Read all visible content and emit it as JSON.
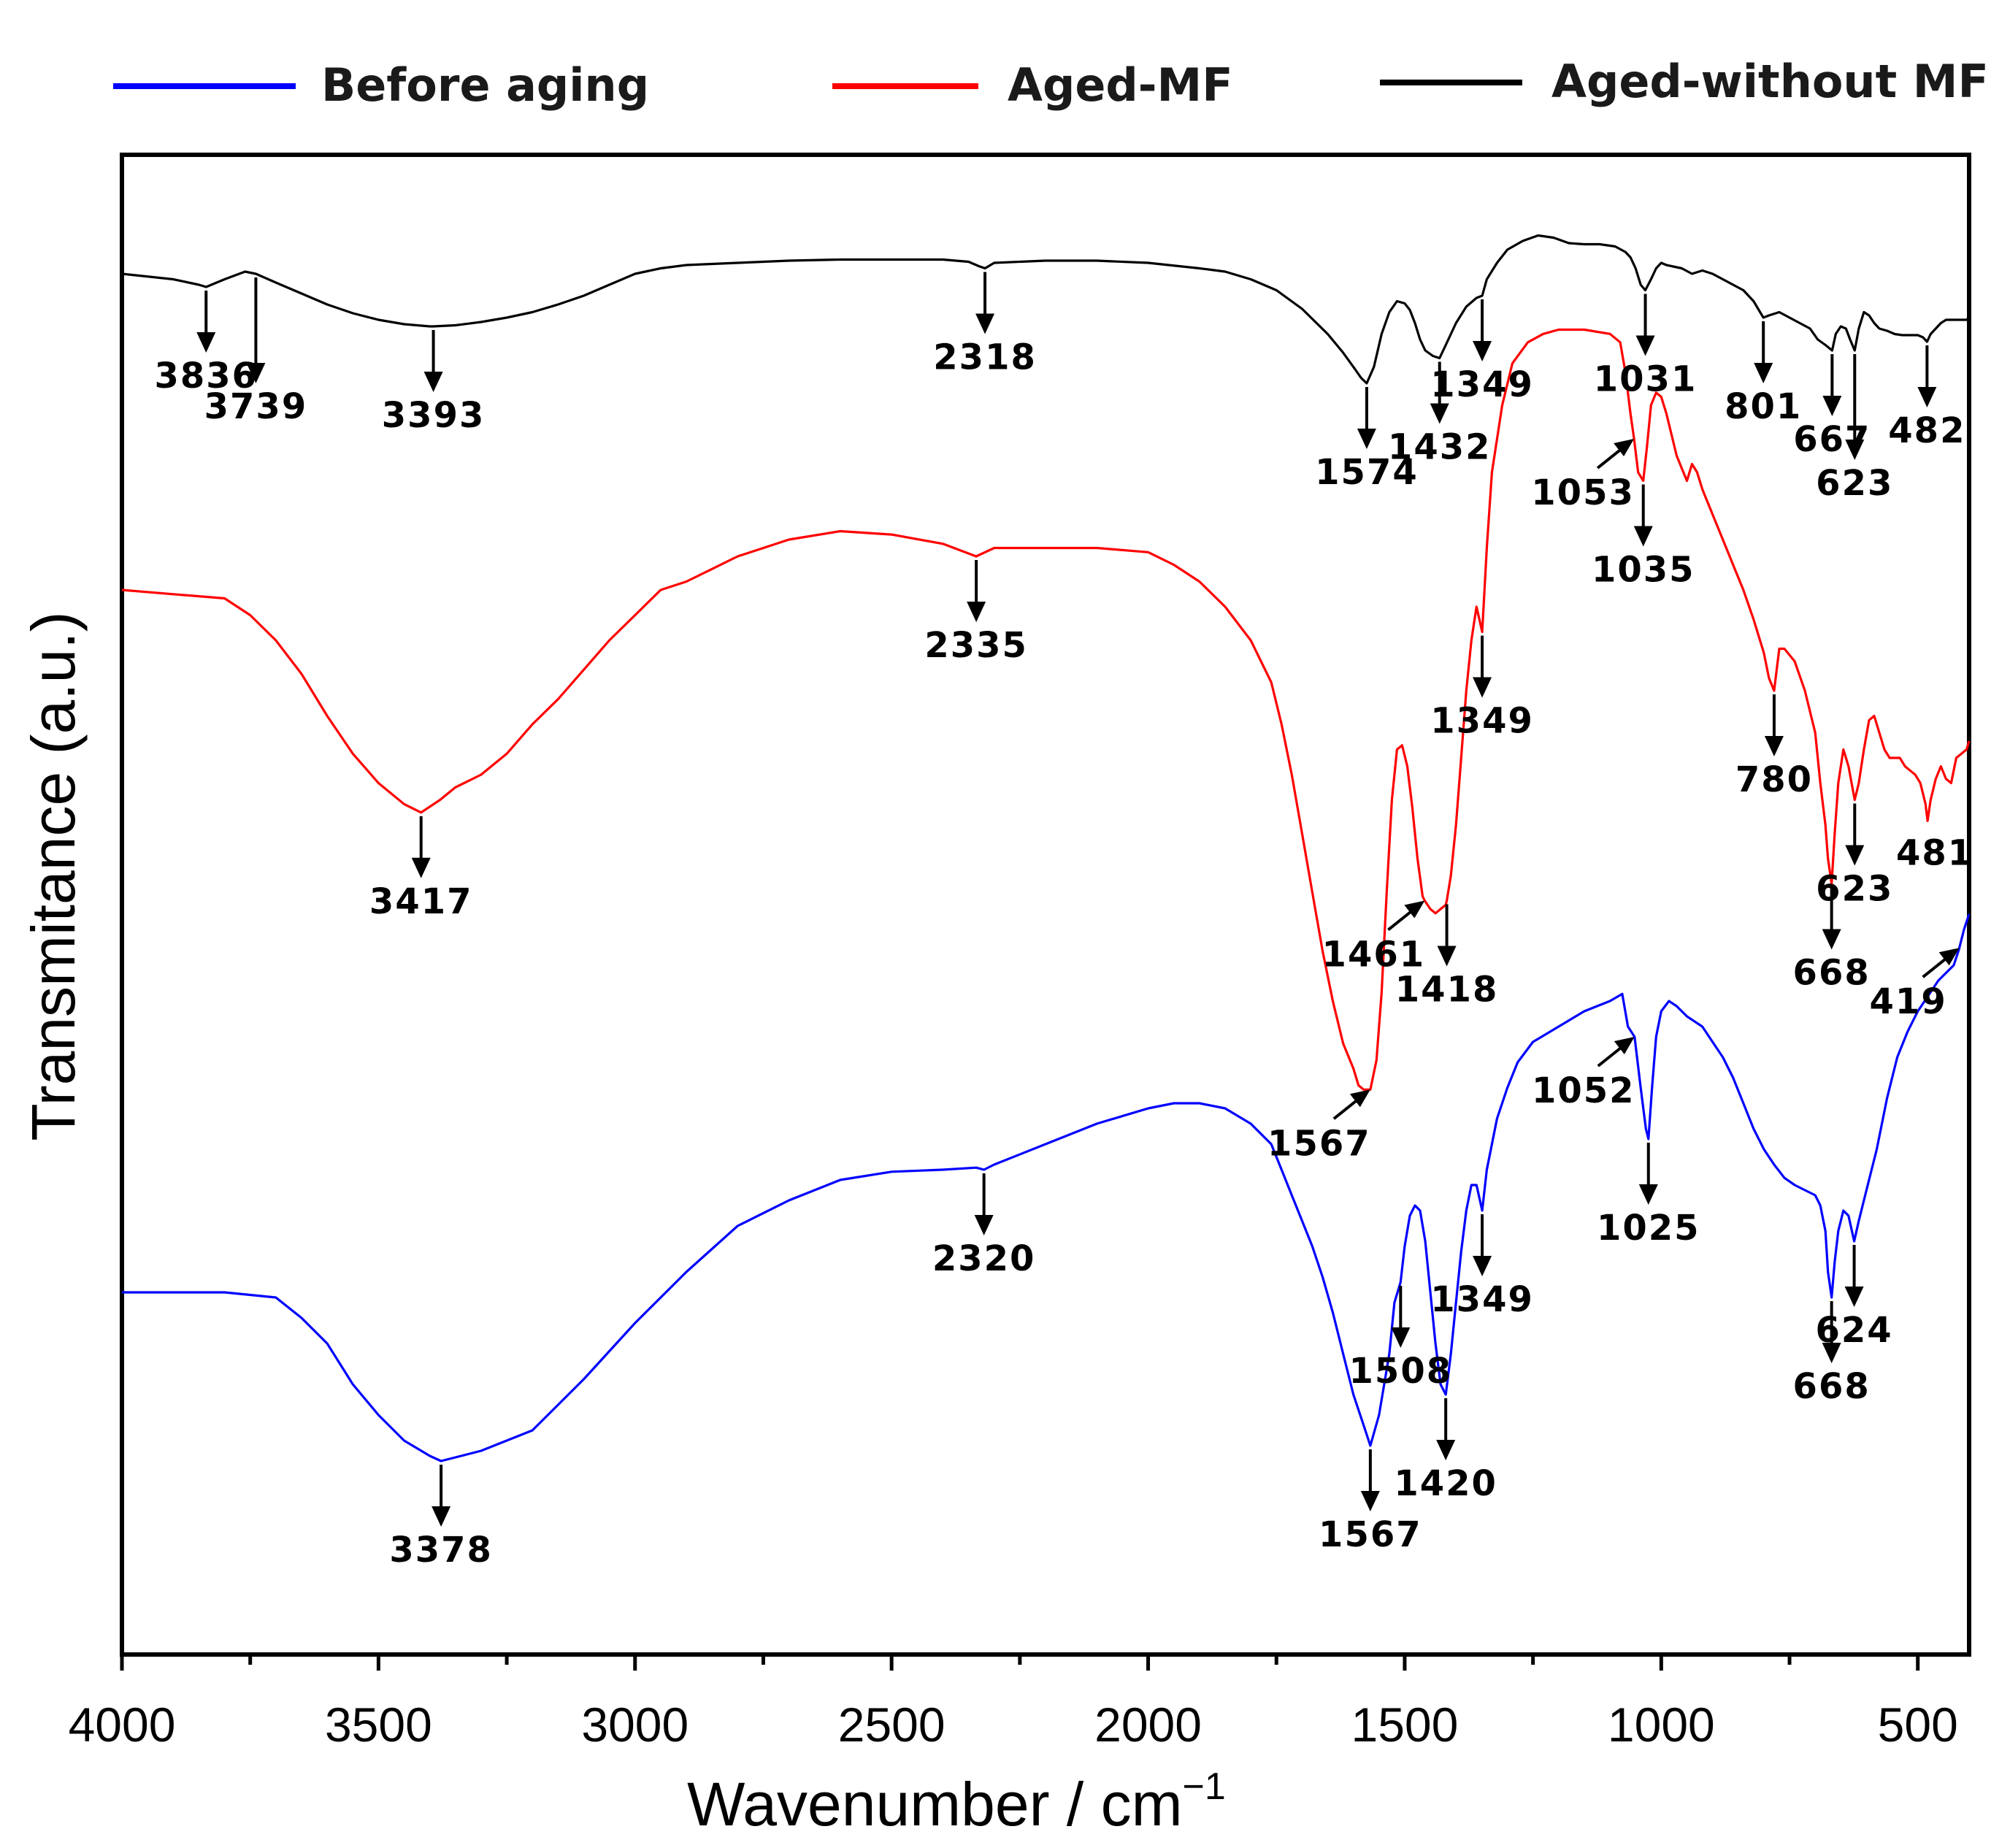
{
  "chart_data": {
    "type": "line",
    "xlabel": "Wavenumber / cm",
    "xlabel_superscript": "−1",
    "ylabel": "Transmitance (a.u.)",
    "xlim": [
      4000,
      400
    ],
    "x_ticks": [
      4000,
      3500,
      3000,
      2500,
      2000,
      1500,
      1000,
      500
    ],
    "x_tick_labels": [
      "4000",
      "3500",
      "3000",
      "2500",
      "2000",
      "1500",
      "1000",
      "500"
    ],
    "y_ticks_shown": false,
    "legend_position": "top, outside plot, horizontal",
    "series": [
      {
        "name": "Before aging",
        "color": "#0000ff",
        "offset_rank": "bottom",
        "x": [
          4000,
          3900,
          3800,
          3700,
          3650,
          3600,
          3550,
          3500,
          3450,
          3400,
          3378,
          3300,
          3200,
          3100,
          3000,
          2900,
          2800,
          2700,
          2600,
          2500,
          2400,
          2335,
          2320,
          2300,
          2200,
          2100,
          2000,
          1950,
          1900,
          1850,
          1800,
          1760,
          1740,
          1720,
          1700,
          1680,
          1660,
          1640,
          1620,
          1600,
          1580,
          1567,
          1550,
          1530,
          1520,
          1508,
          1500,
          1490,
          1480,
          1470,
          1460,
          1450,
          1440,
          1430,
          1420,
          1410,
          1400,
          1390,
          1380,
          1370,
          1360,
          1349,
          1340,
          1320,
          1300,
          1280,
          1250,
          1200,
          1150,
          1100,
          1076,
          1065,
          1052,
          1040,
          1030,
          1025,
          1018,
          1010,
          1000,
          985,
          970,
          950,
          920,
          900,
          880,
          860,
          840,
          820,
          800,
          780,
          760,
          740,
          720,
          700,
          690,
          680,
          675,
          668,
          662,
          655,
          645,
          635,
          624,
          615,
          600,
          580,
          560,
          540,
          520,
          500,
          480,
          460,
          440,
          430,
          420,
          410,
          400
        ],
        "y": [
          0.0,
          0.0,
          0.0,
          -0.05,
          -0.25,
          -0.5,
          -0.9,
          -1.2,
          -1.45,
          -1.6,
          -1.65,
          -1.55,
          -1.35,
          -0.85,
          -0.3,
          0.2,
          0.65,
          0.9,
          1.1,
          1.18,
          1.2,
          1.22,
          1.2,
          1.25,
          1.45,
          1.65,
          1.8,
          1.85,
          1.85,
          1.8,
          1.65,
          1.45,
          1.2,
          0.95,
          0.7,
          0.45,
          0.15,
          -0.2,
          -0.6,
          -1.0,
          -1.3,
          -1.5,
          -1.2,
          -0.6,
          -0.1,
          0.1,
          0.45,
          0.75,
          0.85,
          0.8,
          0.5,
          0.0,
          -0.5,
          -0.9,
          -1.0,
          -0.6,
          -0.1,
          0.4,
          0.8,
          1.05,
          1.05,
          0.8,
          1.2,
          1.7,
          2.0,
          2.25,
          2.45,
          2.6,
          2.75,
          2.85,
          2.92,
          2.6,
          2.5,
          2.0,
          1.6,
          1.5,
          2.0,
          2.5,
          2.75,
          2.85,
          2.8,
          2.7,
          2.6,
          2.45,
          2.3,
          2.1,
          1.85,
          1.6,
          1.4,
          1.25,
          1.12,
          1.05,
          1.0,
          0.95,
          0.85,
          0.6,
          0.2,
          -0.05,
          0.3,
          0.6,
          0.8,
          0.75,
          0.5,
          0.7,
          1.0,
          1.4,
          1.9,
          2.3,
          2.55,
          2.75,
          2.9,
          3.05,
          3.15,
          3.2,
          3.35,
          3.55,
          3.7
        ]
      },
      {
        "name": "Aged-MF",
        "color": "#ff0000",
        "offset_rank": "middle",
        "x": [
          4000,
          3900,
          3800,
          3750,
          3700,
          3650,
          3600,
          3550,
          3500,
          3450,
          3417,
          3380,
          3350,
          3300,
          3250,
          3200,
          3150,
          3100,
          3050,
          3000,
          2950,
          2900,
          2850,
          2800,
          2700,
          2600,
          2500,
          2400,
          2335,
          2300,
          2200,
          2100,
          2000,
          1950,
          1900,
          1850,
          1800,
          1760,
          1740,
          1720,
          1700,
          1680,
          1660,
          1640,
          1620,
          1600,
          1590,
          1580,
          1567,
          1555,
          1545,
          1535,
          1525,
          1515,
          1505,
          1495,
          1485,
          1475,
          1465,
          1461,
          1450,
          1440,
          1430,
          1420,
          1418,
          1410,
          1400,
          1390,
          1380,
          1370,
          1360,
          1349,
          1340,
          1330,
          1310,
          1290,
          1260,
          1230,
          1200,
          1150,
          1100,
          1080,
          1070,
          1060,
          1053,
          1045,
          1035,
          1028,
          1020,
          1010,
          1000,
          990,
          980,
          970,
          960,
          950,
          940,
          930,
          920,
          900,
          880,
          860,
          840,
          820,
          800,
          790,
          780,
          770,
          760,
          740,
          720,
          700,
          690,
          680,
          675,
          668,
          662,
          655,
          645,
          635,
          623,
          615,
          605,
          595,
          585,
          575,
          565,
          555,
          545,
          535,
          525,
          515,
          505,
          495,
          485,
          481,
          475,
          465,
          455,
          445,
          435,
          425,
          415,
          405,
          400
        ],
        "y": [
          0.0,
          -0.05,
          -0.1,
          -0.3,
          -0.6,
          -1.0,
          -1.5,
          -1.95,
          -2.3,
          -2.55,
          -2.65,
          -2.5,
          -2.35,
          -2.2,
          -1.95,
          -1.6,
          -1.3,
          -0.95,
          -0.6,
          -0.3,
          0.0,
          0.1,
          0.25,
          0.4,
          0.6,
          0.7,
          0.66,
          0.55,
          0.4,
          0.5,
          0.5,
          0.5,
          0.45,
          0.3,
          0.1,
          -0.2,
          -0.6,
          -1.1,
          -1.6,
          -2.2,
          -2.9,
          -3.6,
          -4.3,
          -4.9,
          -5.4,
          -5.7,
          -5.9,
          -5.95,
          -5.95,
          -5.6,
          -4.8,
          -3.6,
          -2.5,
          -1.9,
          -1.85,
          -2.1,
          -2.6,
          -3.2,
          -3.65,
          -3.7,
          -3.8,
          -3.85,
          -3.8,
          -3.75,
          -3.7,
          -3.4,
          -2.8,
          -2.0,
          -1.2,
          -0.6,
          -0.2,
          -0.5,
          0.5,
          1.4,
          2.2,
          2.7,
          2.95,
          3.05,
          3.1,
          3.1,
          3.05,
          2.95,
          2.6,
          2.1,
          1.8,
          1.4,
          1.3,
          1.7,
          2.2,
          2.35,
          2.3,
          2.1,
          1.85,
          1.6,
          1.45,
          1.3,
          1.5,
          1.4,
          1.2,
          0.9,
          0.6,
          0.3,
          0.0,
          -0.35,
          -0.75,
          -1.05,
          -1.2,
          -0.7,
          -0.7,
          -0.85,
          -1.2,
          -1.7,
          -2.3,
          -2.8,
          -3.2,
          -3.5,
          -2.9,
          -2.3,
          -1.9,
          -2.1,
          -2.5,
          -2.3,
          -1.9,
          -1.55,
          -1.5,
          -1.7,
          -1.9,
          -2.0,
          -2.0,
          -2.0,
          -2.1,
          -2.15,
          -2.2,
          -2.3,
          -2.55,
          -2.75,
          -2.5,
          -2.25,
          -2.1,
          -2.25,
          -2.3,
          -2.0,
          -1.95,
          -1.9,
          -1.8
        ]
      },
      {
        "name": "Aged-without MF",
        "color": "#000000",
        "offset_rank": "top",
        "x": [
          4000,
          3900,
          3850,
          3836,
          3800,
          3760,
          3739,
          3700,
          3650,
          3600,
          3550,
          3500,
          3450,
          3400,
          3393,
          3350,
          3300,
          3250,
          3200,
          3150,
          3100,
          3050,
          3000,
          2950,
          2900,
          2800,
          2700,
          2600,
          2500,
          2400,
          2350,
          2330,
          2318,
          2300,
          2200,
          2100,
          2000,
          1900,
          1850,
          1800,
          1750,
          1700,
          1650,
          1620,
          1600,
          1585,
          1574,
          1560,
          1545,
          1530,
          1515,
          1500,
          1490,
          1480,
          1470,
          1460,
          1445,
          1432,
          1420,
          1400,
          1380,
          1360,
          1349,
          1340,
          1320,
          1300,
          1270,
          1240,
          1210,
          1180,
          1150,
          1120,
          1090,
          1070,
          1060,
          1050,
          1040,
          1031,
          1020,
          1010,
          1000,
          990,
          980,
          960,
          940,
          920,
          900,
          880,
          860,
          840,
          820,
          801,
          790,
          770,
          750,
          730,
          710,
          695,
          680,
          667,
          660,
          650,
          640,
          632,
          623,
          615,
          605,
          595,
          585,
          575,
          560,
          545,
          530,
          515,
          500,
          490,
          482,
          475,
          465,
          455,
          445,
          435,
          425,
          415,
          405,
          400
        ],
        "y": [
          0.0,
          -0.05,
          -0.1,
          -0.12,
          -0.05,
          0.02,
          0.0,
          -0.08,
          -0.18,
          -0.28,
          -0.36,
          -0.42,
          -0.46,
          -0.48,
          -0.48,
          -0.47,
          -0.44,
          -0.4,
          -0.35,
          -0.28,
          -0.2,
          -0.1,
          0.0,
          0.05,
          0.08,
          0.1,
          0.12,
          0.13,
          0.13,
          0.13,
          0.11,
          0.07,
          0.05,
          0.1,
          0.12,
          0.12,
          0.1,
          0.05,
          0.02,
          -0.05,
          -0.15,
          -0.32,
          -0.55,
          -0.72,
          -0.85,
          -0.95,
          -1.0,
          -0.85,
          -0.55,
          -0.35,
          -0.25,
          -0.27,
          -0.33,
          -0.45,
          -0.6,
          -0.7,
          -0.75,
          -0.77,
          -0.65,
          -0.45,
          -0.3,
          -0.22,
          -0.2,
          -0.05,
          0.1,
          0.22,
          0.3,
          0.35,
          0.33,
          0.28,
          0.27,
          0.27,
          0.25,
          0.2,
          0.15,
          0.05,
          -0.1,
          -0.15,
          -0.05,
          0.05,
          0.1,
          0.08,
          0.07,
          0.05,
          0.0,
          0.03,
          0.0,
          -0.05,
          -0.1,
          -0.15,
          -0.25,
          -0.4,
          -0.38,
          -0.35,
          -0.4,
          -0.45,
          -0.5,
          -0.6,
          -0.65,
          -0.7,
          -0.55,
          -0.48,
          -0.5,
          -0.6,
          -0.7,
          -0.5,
          -0.35,
          -0.38,
          -0.45,
          -0.5,
          -0.52,
          -0.55,
          -0.56,
          -0.56,
          -0.56,
          -0.58,
          -0.62,
          -0.55,
          -0.5,
          -0.45,
          -0.42,
          -0.42,
          -0.42,
          -0.42,
          -0.42,
          -0.4
        ]
      }
    ],
    "annotations": [
      {
        "series": "Aged-without MF",
        "label": "3836",
        "x": 3836,
        "arrow": "down"
      },
      {
        "series": "Aged-without MF",
        "label": "3739",
        "x": 3739,
        "arrow": "down",
        "long": true
      },
      {
        "series": "Aged-without MF",
        "label": "3393",
        "x": 3393,
        "arrow": "down"
      },
      {
        "series": "Aged-without MF",
        "label": "2318",
        "x": 2318,
        "arrow": "down"
      },
      {
        "series": "Aged-without MF",
        "label": "1574",
        "x": 1574,
        "arrow": "down"
      },
      {
        "series": "Aged-without MF",
        "label": "1432",
        "x": 1432,
        "arrow": "down"
      },
      {
        "series": "Aged-without MF",
        "label": "1349",
        "x": 1349,
        "arrow": "down"
      },
      {
        "series": "Aged-without MF",
        "label": "1031",
        "x": 1031,
        "arrow": "down"
      },
      {
        "series": "Aged-without MF",
        "label": "801",
        "x": 801,
        "arrow": "down"
      },
      {
        "series": "Aged-without MF",
        "label": "667",
        "x": 667,
        "arrow": "down"
      },
      {
        "series": "Aged-without MF",
        "label": "623",
        "x": 623,
        "arrow": "down",
        "long": true
      },
      {
        "series": "Aged-without MF",
        "label": "482",
        "x": 482,
        "arrow": "down"
      },
      {
        "series": "Aged-MF",
        "label": "2335",
        "x": 2335,
        "arrow": "down"
      },
      {
        "series": "Aged-MF",
        "label": "3417",
        "x": 3417,
        "arrow": "down"
      },
      {
        "series": "Aged-MF",
        "label": "1349",
        "x": 1349,
        "arrow": "down"
      },
      {
        "series": "Aged-MF",
        "label": "1053",
        "x": 1053,
        "arrow": "diagonal"
      },
      {
        "series": "Aged-MF",
        "label": "1035",
        "x": 1035,
        "arrow": "down"
      },
      {
        "series": "Aged-MF",
        "label": "780",
        "x": 780,
        "arrow": "down"
      },
      {
        "series": "Aged-MF",
        "label": "1461",
        "x": 1461,
        "arrow": "diagonal"
      },
      {
        "series": "Aged-MF",
        "label": "1418",
        "x": 1418,
        "arrow": "down"
      },
      {
        "series": "Aged-MF",
        "label": "1567",
        "x": 1567,
        "arrow": "diagonal"
      },
      {
        "series": "Aged-MF",
        "label": "668",
        "x": 668,
        "arrow": "down"
      },
      {
        "series": "Aged-MF",
        "label": "623",
        "x": 623,
        "arrow": "down"
      },
      {
        "series": "Aged-MF",
        "label": "481",
        "x": 481,
        "arrow": "none"
      },
      {
        "series": "Before aging",
        "label": "419",
        "x": 419,
        "arrow": "diagonal"
      },
      {
        "series": "Before aging",
        "label": "1052",
        "x": 1052,
        "arrow": "diagonal"
      },
      {
        "series": "Before aging",
        "label": "1025",
        "x": 1025,
        "arrow": "down"
      },
      {
        "series": "Before aging",
        "label": "2320",
        "x": 2320,
        "arrow": "down"
      },
      {
        "series": "Before aging",
        "label": "1349",
        "x": 1349,
        "arrow": "down"
      },
      {
        "series": "Before aging",
        "label": "624",
        "x": 624,
        "arrow": "down"
      },
      {
        "series": "Before aging",
        "label": "668",
        "x": 668,
        "arrow": "down"
      },
      {
        "series": "Before aging",
        "label": "1508",
        "x": 1508,
        "arrow": "down"
      },
      {
        "series": "Before aging",
        "label": "1420",
        "x": 1420,
        "arrow": "down"
      },
      {
        "series": "Before aging",
        "label": "3378",
        "x": 3378,
        "arrow": "down"
      },
      {
        "series": "Before aging",
        "label": "1567",
        "x": 1567,
        "arrow": "down"
      }
    ]
  }
}
